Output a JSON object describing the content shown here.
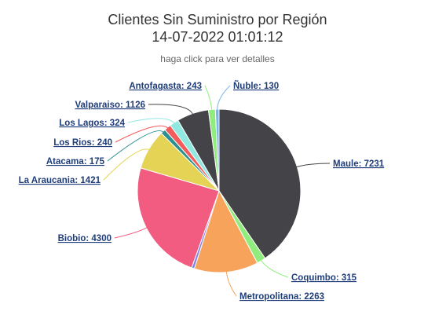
{
  "header": {
    "title_line1": "Clientes Sin Suministro por Región",
    "title_line2": "14-07-2022 01:01:12",
    "subtitle": "haga click para ver detalles"
  },
  "chart_data": {
    "type": "pie",
    "slices": [
      {
        "name": "Maule",
        "value": 7231,
        "color": "#434348"
      },
      {
        "name": "Coquimbo",
        "value": 315,
        "color": "#90ed7d"
      },
      {
        "name": "Metropolitana",
        "value": 2263,
        "color": "#f7a35c"
      },
      {
        "name": "",
        "value": 100,
        "color": "#8085e9"
      },
      {
        "name": "Biobio",
        "value": 4300,
        "color": "#f15c80"
      },
      {
        "name": "La Araucania",
        "value": 1421,
        "color": "#e4d354"
      },
      {
        "name": "Atacama",
        "value": 175,
        "color": "#2b908f"
      },
      {
        "name": "Los Rios",
        "value": 240,
        "color": "#f45b5b"
      },
      {
        "name": "Los Lagos",
        "value": 324,
        "color": "#91e8e1"
      },
      {
        "name": "Valparaiso",
        "value": 1126,
        "color": "#434348"
      },
      {
        "name": "Antofagasta",
        "value": 243,
        "color": "#90ed7d"
      },
      {
        "name": "Ñuble",
        "value": 130,
        "color": "#7cb5ec"
      }
    ],
    "labels": [
      {
        "text": "Maule: 7231",
        "slice": 0
      },
      {
        "text": "Coquimbo: 315",
        "slice": 1
      },
      {
        "text": "Metropolitana: 2263",
        "slice": 2
      },
      {
        "text": "Biobio: 4300",
        "slice": 4
      },
      {
        "text": "La Araucania: 1421",
        "slice": 5
      },
      {
        "text": "Atacama: 175",
        "slice": 6
      },
      {
        "text": "Los Rios: 240",
        "slice": 7
      },
      {
        "text": "Los Lagos: 324",
        "slice": 8
      },
      {
        "text": "Valparaiso: 1126",
        "slice": 9
      },
      {
        "text": "Antofagasta: 243",
        "slice": 10
      },
      {
        "text": "Ñuble: 130",
        "slice": 11
      }
    ]
  }
}
